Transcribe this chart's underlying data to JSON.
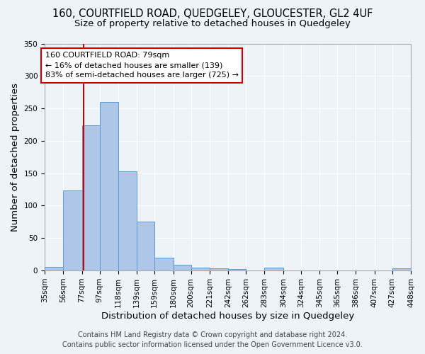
{
  "title": "160, COURTFIELD ROAD, QUEDGELEY, GLOUCESTER, GL2 4UF",
  "subtitle": "Size of property relative to detached houses in Quedgeley",
  "xlabel": "Distribution of detached houses by size in Quedgeley",
  "ylabel": "Number of detached properties",
  "footer_line1": "Contains HM Land Registry data © Crown copyright and database right 2024.",
  "footer_line2": "Contains public sector information licensed under the Open Government Licence v3.0.",
  "bin_edges": [
    35,
    56,
    77,
    97,
    118,
    139,
    159,
    180,
    200,
    221,
    242,
    262,
    283,
    304,
    324,
    345,
    365,
    386,
    407,
    427,
    448
  ],
  "bin_labels": [
    "35sqm",
    "56sqm",
    "77sqm",
    "97sqm",
    "118sqm",
    "139sqm",
    "159sqm",
    "180sqm",
    "200sqm",
    "221sqm",
    "242sqm",
    "262sqm",
    "283sqm",
    "304sqm",
    "324sqm",
    "345sqm",
    "365sqm",
    "386sqm",
    "407sqm",
    "427sqm",
    "448sqm"
  ],
  "counts": [
    6,
    123,
    224,
    260,
    153,
    75,
    20,
    9,
    5,
    3,
    2,
    0,
    4,
    0,
    0,
    0,
    0,
    0,
    0,
    3
  ],
  "bar_facecolor": "#aec6e8",
  "bar_edgecolor": "#5b9bd5",
  "property_size": 79,
  "property_line_color": "#cc0000",
  "annotation_line1": "160 COURTFIELD ROAD: 79sqm",
  "annotation_line2": "← 16% of detached houses are smaller (139)",
  "annotation_line3": "83% of semi-detached houses are larger (725) →",
  "annotation_box_edgecolor": "#cc0000",
  "annotation_box_facecolor": "#ffffff",
  "ylim": [
    0,
    350
  ],
  "background_color": "#eef2f9",
  "plot_background_color": "#eef2f9",
  "grid_color": "#ffffff",
  "title_fontsize": 10.5,
  "subtitle_fontsize": 9.5,
  "axis_label_fontsize": 9.5,
  "tick_fontsize": 7.5,
  "annotation_fontsize": 8,
  "footer_fontsize": 7
}
